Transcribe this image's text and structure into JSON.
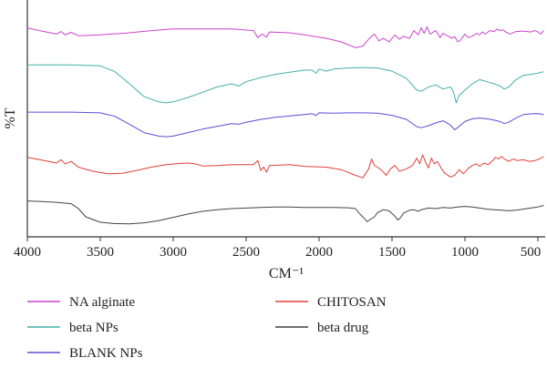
{
  "chart_data": {
    "type": "line",
    "xlabel": "CM⁻¹",
    "ylabel": "%T",
    "xlim": [
      4000,
      450
    ],
    "x_reversed": true,
    "ticks": [
      4000,
      3500,
      3000,
      2500,
      2000,
      1500,
      1000,
      500
    ],
    "tick_labels": [
      "4000",
      "3500",
      "3000",
      "2500",
      "2000",
      "1500",
      "1000",
      "500"
    ],
    "y_ticks_shown": false,
    "grid": false,
    "legend_position": "bottom",
    "series": [
      {
        "name": "NA alginate",
        "color": "#cc44cc",
        "points": [
          [
            4000,
            0.94
          ],
          [
            3900,
            0.87
          ],
          [
            3800,
            0.8
          ],
          [
            3770,
            0.86
          ],
          [
            3740,
            0.78
          ],
          [
            3700,
            0.84
          ],
          [
            3650,
            0.76
          ],
          [
            3500,
            0.78
          ],
          [
            3300,
            0.83
          ],
          [
            3150,
            0.88
          ],
          [
            3000,
            0.92
          ],
          [
            2800,
            0.92
          ],
          [
            2600,
            0.92
          ],
          [
            2450,
            0.88
          ],
          [
            2420,
            0.72
          ],
          [
            2390,
            0.8
          ],
          [
            2360,
            0.73
          ],
          [
            2340,
            0.85
          ],
          [
            2200,
            0.83
          ],
          [
            2100,
            0.78
          ],
          [
            1950,
            0.7
          ],
          [
            1850,
            0.62
          ],
          [
            1750,
            0.48
          ],
          [
            1700,
            0.52
          ],
          [
            1650,
            0.72
          ],
          [
            1620,
            0.8
          ],
          [
            1590,
            0.64
          ],
          [
            1560,
            0.7
          ],
          [
            1520,
            0.62
          ],
          [
            1480,
            0.78
          ],
          [
            1450,
            0.68
          ],
          [
            1420,
            0.75
          ],
          [
            1380,
            0.7
          ],
          [
            1350,
            0.88
          ],
          [
            1320,
            0.78
          ],
          [
            1300,
            0.95
          ],
          [
            1280,
            0.82
          ],
          [
            1260,
            0.97
          ],
          [
            1240,
            0.8
          ],
          [
            1200,
            0.88
          ],
          [
            1170,
            0.72
          ],
          [
            1150,
            0.82
          ],
          [
            1120,
            0.76
          ],
          [
            1090,
            0.7
          ],
          [
            1070,
            0.74
          ],
          [
            1050,
            0.62
          ],
          [
            1030,
            0.66
          ],
          [
            1000,
            0.8
          ],
          [
            980,
            0.72
          ],
          [
            950,
            0.75
          ],
          [
            920,
            0.82
          ],
          [
            900,
            0.78
          ],
          [
            880,
            0.85
          ],
          [
            860,
            0.8
          ],
          [
            830,
            0.88
          ],
          [
            800,
            0.86
          ],
          [
            780,
            0.92
          ],
          [
            760,
            0.88
          ],
          [
            740,
            0.9
          ],
          [
            720,
            0.85
          ],
          [
            690,
            0.8
          ],
          [
            650,
            0.86
          ],
          [
            600,
            0.87
          ],
          [
            550,
            0.85
          ],
          [
            520,
            0.88
          ],
          [
            500,
            0.85
          ],
          [
            480,
            0.8
          ],
          [
            460,
            0.88
          ]
        ]
      },
      {
        "name": "beta NPs",
        "color": "#44b0a8",
        "points": [
          [
            4000,
            0.98
          ],
          [
            3700,
            0.98
          ],
          [
            3500,
            0.96
          ],
          [
            3400,
            0.85
          ],
          [
            3300,
            0.62
          ],
          [
            3200,
            0.38
          ],
          [
            3100,
            0.28
          ],
          [
            3050,
            0.26
          ],
          [
            3000,
            0.28
          ],
          [
            2900,
            0.36
          ],
          [
            2800,
            0.46
          ],
          [
            2700,
            0.56
          ],
          [
            2600,
            0.62
          ],
          [
            2550,
            0.58
          ],
          [
            2500,
            0.66
          ],
          [
            2400,
            0.74
          ],
          [
            2300,
            0.8
          ],
          [
            2200,
            0.84
          ],
          [
            2100,
            0.88
          ],
          [
            2050,
            0.88
          ],
          [
            2020,
            0.82
          ],
          [
            2000,
            0.9
          ],
          [
            1950,
            0.86
          ],
          [
            1900,
            0.9
          ],
          [
            1800,
            0.92
          ],
          [
            1700,
            0.93
          ],
          [
            1600,
            0.92
          ],
          [
            1500,
            0.86
          ],
          [
            1400,
            0.72
          ],
          [
            1330,
            0.5
          ],
          [
            1300,
            0.48
          ],
          [
            1250,
            0.56
          ],
          [
            1200,
            0.6
          ],
          [
            1150,
            0.52
          ],
          [
            1100,
            0.56
          ],
          [
            1080,
            0.48
          ],
          [
            1060,
            0.26
          ],
          [
            1040,
            0.4
          ],
          [
            1000,
            0.5
          ],
          [
            950,
            0.62
          ],
          [
            900,
            0.7
          ],
          [
            850,
            0.66
          ],
          [
            800,
            0.62
          ],
          [
            760,
            0.58
          ],
          [
            730,
            0.52
          ],
          [
            700,
            0.56
          ],
          [
            650,
            0.7
          ],
          [
            600,
            0.78
          ],
          [
            550,
            0.8
          ],
          [
            500,
            0.82
          ],
          [
            460,
            0.85
          ]
        ]
      },
      {
        "name": "BLANK NPs",
        "color": "#5a4ed6",
        "points": [
          [
            4000,
            0.97
          ],
          [
            3700,
            0.97
          ],
          [
            3500,
            0.95
          ],
          [
            3400,
            0.85
          ],
          [
            3300,
            0.62
          ],
          [
            3200,
            0.38
          ],
          [
            3100,
            0.28
          ],
          [
            3050,
            0.26
          ],
          [
            3000,
            0.28
          ],
          [
            2900,
            0.38
          ],
          [
            2800,
            0.48
          ],
          [
            2700,
            0.56
          ],
          [
            2600,
            0.64
          ],
          [
            2550,
            0.62
          ],
          [
            2500,
            0.68
          ],
          [
            2400,
            0.76
          ],
          [
            2300,
            0.82
          ],
          [
            2200,
            0.86
          ],
          [
            2100,
            0.9
          ],
          [
            2050,
            0.93
          ],
          [
            2020,
            0.88
          ],
          [
            2000,
            0.95
          ],
          [
            1900,
            0.94
          ],
          [
            1800,
            0.95
          ],
          [
            1700,
            0.95
          ],
          [
            1600,
            0.94
          ],
          [
            1500,
            0.88
          ],
          [
            1400,
            0.76
          ],
          [
            1330,
            0.55
          ],
          [
            1300,
            0.52
          ],
          [
            1250,
            0.58
          ],
          [
            1200,
            0.66
          ],
          [
            1150,
            0.72
          ],
          [
            1100,
            0.6
          ],
          [
            1070,
            0.46
          ],
          [
            1040,
            0.56
          ],
          [
            1000,
            0.7
          ],
          [
            950,
            0.78
          ],
          [
            900,
            0.8
          ],
          [
            850,
            0.78
          ],
          [
            800,
            0.74
          ],
          [
            760,
            0.7
          ],
          [
            730,
            0.64
          ],
          [
            700,
            0.68
          ],
          [
            650,
            0.8
          ],
          [
            600,
            0.9
          ],
          [
            550,
            0.92
          ],
          [
            500,
            0.93
          ],
          [
            460,
            0.9
          ]
        ]
      },
      {
        "name": "CHITOSAN",
        "color": "#e0403a",
        "points": [
          [
            4000,
            0.94
          ],
          [
            3900,
            0.87
          ],
          [
            3800,
            0.8
          ],
          [
            3770,
            0.88
          ],
          [
            3740,
            0.78
          ],
          [
            3700,
            0.84
          ],
          [
            3650,
            0.7
          ],
          [
            3550,
            0.6
          ],
          [
            3450,
            0.54
          ],
          [
            3350,
            0.55
          ],
          [
            3250,
            0.62
          ],
          [
            3150,
            0.7
          ],
          [
            3050,
            0.76
          ],
          [
            2950,
            0.79
          ],
          [
            2900,
            0.8
          ],
          [
            2850,
            0.78
          ],
          [
            2800,
            0.73
          ],
          [
            2700,
            0.74
          ],
          [
            2600,
            0.76
          ],
          [
            2450,
            0.76
          ],
          [
            2420,
            0.86
          ],
          [
            2400,
            0.62
          ],
          [
            2380,
            0.7
          ],
          [
            2360,
            0.58
          ],
          [
            2340,
            0.74
          ],
          [
            2200,
            0.76
          ],
          [
            2100,
            0.72
          ],
          [
            1950,
            0.7
          ],
          [
            1850,
            0.64
          ],
          [
            1750,
            0.5
          ],
          [
            1700,
            0.44
          ],
          [
            1660,
            0.66
          ],
          [
            1640,
            0.9
          ],
          [
            1620,
            0.74
          ],
          [
            1600,
            0.7
          ],
          [
            1570,
            0.62
          ],
          [
            1540,
            0.5
          ],
          [
            1510,
            0.66
          ],
          [
            1480,
            0.74
          ],
          [
            1450,
            0.6
          ],
          [
            1400,
            0.66
          ],
          [
            1360,
            0.74
          ],
          [
            1330,
            0.92
          ],
          [
            1310,
            0.78
          ],
          [
            1290,
            1.0
          ],
          [
            1270,
            0.82
          ],
          [
            1250,
            0.68
          ],
          [
            1230,
            0.92
          ],
          [
            1210,
            0.78
          ],
          [
            1190,
            0.84
          ],
          [
            1160,
            0.66
          ],
          [
            1140,
            0.56
          ],
          [
            1100,
            0.46
          ],
          [
            1070,
            0.5
          ],
          [
            1040,
            0.64
          ],
          [
            1010,
            0.54
          ],
          [
            980,
            0.66
          ],
          [
            950,
            0.74
          ],
          [
            920,
            0.78
          ],
          [
            900,
            0.72
          ],
          [
            870,
            0.8
          ],
          [
            840,
            0.76
          ],
          [
            810,
            0.86
          ],
          [
            790,
            0.94
          ],
          [
            770,
            0.9
          ],
          [
            750,
            0.96
          ],
          [
            730,
            0.9
          ],
          [
            700,
            0.84
          ],
          [
            670,
            0.9
          ],
          [
            640,
            0.86
          ],
          [
            600,
            0.88
          ],
          [
            560,
            0.84
          ],
          [
            520,
            0.86
          ],
          [
            490,
            0.9
          ],
          [
            460,
            0.96
          ]
        ]
      },
      {
        "name": "beta drug",
        "color": "#444444",
        "points": [
          [
            4000,
            0.98
          ],
          [
            3900,
            0.96
          ],
          [
            3800,
            0.93
          ],
          [
            3700,
            0.88
          ],
          [
            3650,
            0.7
          ],
          [
            3600,
            0.4
          ],
          [
            3500,
            0.2
          ],
          [
            3400,
            0.15
          ],
          [
            3300,
            0.14
          ],
          [
            3200,
            0.18
          ],
          [
            3100,
            0.26
          ],
          [
            3000,
            0.38
          ],
          [
            2900,
            0.5
          ],
          [
            2800,
            0.6
          ],
          [
            2700,
            0.66
          ],
          [
            2600,
            0.7
          ],
          [
            2500,
            0.72
          ],
          [
            2400,
            0.74
          ],
          [
            2300,
            0.76
          ],
          [
            2200,
            0.76
          ],
          [
            2100,
            0.74
          ],
          [
            2000,
            0.74
          ],
          [
            1900,
            0.74
          ],
          [
            1800,
            0.73
          ],
          [
            1750,
            0.7
          ],
          [
            1720,
            0.5
          ],
          [
            1690,
            0.34
          ],
          [
            1670,
            0.22
          ],
          [
            1650,
            0.3
          ],
          [
            1620,
            0.4
          ],
          [
            1600,
            0.55
          ],
          [
            1560,
            0.66
          ],
          [
            1520,
            0.62
          ],
          [
            1480,
            0.42
          ],
          [
            1460,
            0.28
          ],
          [
            1440,
            0.38
          ],
          [
            1420,
            0.54
          ],
          [
            1380,
            0.64
          ],
          [
            1350,
            0.66
          ],
          [
            1320,
            0.6
          ],
          [
            1300,
            0.66
          ],
          [
            1250,
            0.72
          ],
          [
            1200,
            0.7
          ],
          [
            1150,
            0.74
          ],
          [
            1100,
            0.72
          ],
          [
            1050,
            0.76
          ],
          [
            1000,
            0.78
          ],
          [
            950,
            0.76
          ],
          [
            900,
            0.72
          ],
          [
            850,
            0.68
          ],
          [
            800,
            0.66
          ],
          [
            750,
            0.64
          ],
          [
            700,
            0.62
          ],
          [
            650,
            0.64
          ],
          [
            600,
            0.68
          ],
          [
            550,
            0.72
          ],
          [
            500,
            0.76
          ],
          [
            470,
            0.8
          ],
          [
            460,
            0.82
          ]
        ]
      }
    ]
  }
}
